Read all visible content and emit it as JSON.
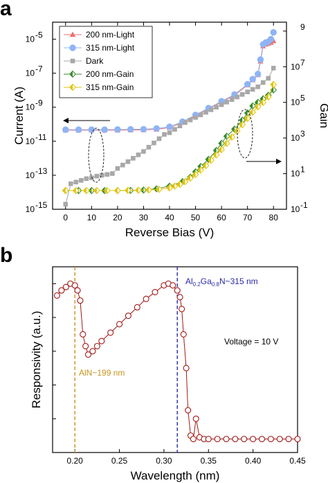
{
  "colors": {
    "light_200": "#ee6f6f",
    "light_315": "#8fb4f6",
    "dark": "#a8a8a8",
    "gain_200": "#3a8a2c",
    "gain_315": "#e0c40a",
    "resp": "#a11818",
    "aln_line": "#c8941e",
    "algan_line": "#2a2aa6",
    "axis": "#000000"
  },
  "chart_data": [
    {
      "panel": "a",
      "type": "scatter",
      "xlabel": "Reverse Bias (V)",
      "ylabel": "Current (A)",
      "y2label": "Gain",
      "xlim": [
        -5,
        85
      ],
      "ylim_log10": [
        -15,
        -4
      ],
      "y2lim_log10": [
        -1,
        9.5
      ],
      "xticks": [
        "0",
        "10",
        "20",
        "30",
        "40",
        "50",
        "60",
        "70",
        "80"
      ],
      "yticks_base": [
        "10",
        "10",
        "10",
        "10",
        "10",
        "10"
      ],
      "yticks_exp": [
        "-15",
        "-13",
        "-11",
        "-9",
        "-7",
        "-5"
      ],
      "y2ticks_base": [
        "10",
        "10",
        "10",
        "10",
        "10"
      ],
      "y2ticks_exp": [
        "-1",
        "1",
        "3",
        "5",
        "7",
        "9"
      ],
      "y2ticks_extra": [
        "10"
      ],
      "legend": [
        "200 nm-Light",
        "315 nm-Light",
        "Dark",
        "200 nm-Gain",
        "315 nm-Gain"
      ],
      "legend_position": "top-left",
      "series": [
        {
          "name": "200 nm-Light",
          "marker": "triangle",
          "axis": "left",
          "x": [
            0,
            5,
            10,
            15,
            20,
            25,
            30,
            35,
            40,
            45,
            50,
            55,
            60,
            65,
            70,
            72,
            74,
            75,
            76,
            77,
            78,
            79,
            80
          ],
          "y_log10": [
            -10.35,
            -10.35,
            -10.35,
            -10.35,
            -10.35,
            -10.34,
            -10.33,
            -10.3,
            -10.2,
            -9.9,
            -9.5,
            -9.1,
            -8.7,
            -8.3,
            -7.7,
            -7.4,
            -7.1,
            -6.3,
            -5.4,
            -5.3,
            -5.25,
            -5.2,
            -5.1
          ]
        },
        {
          "name": "315 nm-Light",
          "marker": "circle",
          "axis": "left",
          "x": [
            0,
            5,
            10,
            15,
            20,
            25,
            30,
            35,
            40,
            45,
            50,
            55,
            60,
            65,
            70,
            72,
            74,
            75,
            76,
            77,
            78,
            79,
            80
          ],
          "y_log10": [
            -10.32,
            -10.32,
            -10.32,
            -10.32,
            -10.31,
            -10.3,
            -10.29,
            -10.25,
            -10.15,
            -9.85,
            -9.45,
            -9.05,
            -8.65,
            -8.25,
            -7.65,
            -7.35,
            -7.05,
            -6.2,
            -5.3,
            -5.2,
            -5.15,
            -5.0,
            -4.6
          ]
        },
        {
          "name": "Dark",
          "marker": "square",
          "axis": "left",
          "x": [
            0,
            2,
            4,
            6,
            8,
            10,
            12,
            14,
            16,
            18,
            20,
            22,
            24,
            26,
            28,
            30,
            32,
            34,
            36,
            38,
            40,
            42,
            44,
            46,
            48,
            50,
            52,
            54,
            56,
            58,
            60,
            62,
            64,
            66,
            68,
            70,
            72,
            74,
            76,
            78,
            80
          ],
          "y_log10": [
            -14.7,
            -13.5,
            -13.4,
            -13.3,
            -13.2,
            -13.15,
            -13.05,
            -13.0,
            -12.95,
            -12.9,
            -12.6,
            -12.4,
            -12.2,
            -12.0,
            -11.8,
            -11.6,
            -11.35,
            -11.1,
            -10.85,
            -10.6,
            -10.5,
            -10.3,
            -10.1,
            -9.9,
            -9.75,
            -9.6,
            -9.45,
            -9.3,
            -9.15,
            -9.0,
            -8.85,
            -8.7,
            -8.55,
            -8.4,
            -8.25,
            -8.1,
            -7.95,
            -7.8,
            -7.55,
            -7.3,
            -6.7
          ]
        },
        {
          "name": "200 nm-Gain",
          "marker": "diamond-half",
          "axis": "right",
          "x": [
            0,
            5,
            10,
            15,
            20,
            25,
            30,
            35,
            40,
            45,
            48,
            50,
            52,
            55,
            58,
            60,
            62,
            65,
            68,
            70,
            72,
            74,
            76,
            78,
            80
          ],
          "y_log10": [
            0.05,
            0.05,
            0.05,
            0.05,
            0.05,
            0.06,
            0.08,
            0.15,
            0.3,
            0.55,
            0.8,
            1.1,
            1.4,
            1.8,
            2.3,
            2.7,
            3.1,
            3.5,
            4.0,
            4.4,
            4.8,
            5.0,
            5.2,
            5.4,
            5.7
          ]
        },
        {
          "name": "315 nm-Gain",
          "marker": "diamond-half",
          "axis": "right",
          "x": [
            0,
            4,
            8,
            12,
            16,
            20,
            24,
            28,
            32,
            36,
            40,
            42,
            44,
            46,
            48,
            50,
            52,
            54,
            56,
            58,
            60,
            62,
            64,
            66,
            68,
            70,
            72,
            74,
            76,
            78,
            80
          ],
          "y_log10": [
            0.05,
            0.05,
            0.05,
            0.05,
            0.05,
            0.05,
            0.06,
            0.07,
            0.09,
            0.12,
            0.2,
            0.3,
            0.4,
            0.55,
            0.75,
            0.95,
            1.2,
            1.45,
            1.75,
            2.05,
            2.35,
            2.7,
            3.05,
            3.4,
            3.75,
            4.1,
            4.45,
            4.75,
            5.0,
            5.3,
            6.0
          ]
        }
      ],
      "annotations": []
    },
    {
      "panel": "b",
      "type": "line",
      "xlabel": "Wavelength (nm)",
      "ylabel": "Responsivity (a.u.)",
      "xlim": [
        0.175,
        0.45
      ],
      "ylim": [
        0,
        1.1
      ],
      "xticks": [
        "0.20",
        "0.25",
        "0.30",
        "0.35",
        "0.40",
        "0.45"
      ],
      "markers": "open-circle",
      "x": [
        0.18,
        0.185,
        0.19,
        0.195,
        0.2,
        0.203,
        0.206,
        0.209,
        0.212,
        0.215,
        0.22,
        0.225,
        0.23,
        0.24,
        0.25,
        0.26,
        0.27,
        0.28,
        0.29,
        0.3,
        0.305,
        0.31,
        0.315,
        0.318,
        0.32,
        0.322,
        0.325,
        0.327,
        0.33,
        0.333,
        0.336,
        0.34,
        0.345,
        0.35,
        0.36,
        0.37,
        0.38,
        0.39,
        0.4,
        0.41,
        0.42,
        0.43,
        0.44,
        0.45
      ],
      "y": [
        0.93,
        0.96,
        0.98,
        1.0,
        0.99,
        0.96,
        0.9,
        0.7,
        0.63,
        0.58,
        0.6,
        0.63,
        0.66,
        0.71,
        0.76,
        0.81,
        0.86,
        0.91,
        0.95,
        0.99,
        1.0,
        0.99,
        0.96,
        0.92,
        0.85,
        0.7,
        0.5,
        0.25,
        0.1,
        0.08,
        0.2,
        0.09,
        0.08,
        0.08,
        0.08,
        0.08,
        0.08,
        0.08,
        0.08,
        0.08,
        0.08,
        0.08,
        0.08,
        0.08
      ],
      "vlines": [
        {
          "x": 0.2,
          "label_main": "AlN~199 nm"
        },
        {
          "x": 0.315,
          "label_parts": [
            "Al",
            "0.2",
            "Ga",
            "0.8",
            "N~315 nm"
          ]
        }
      ],
      "annotation": "Voltage = 10 V"
    }
  ],
  "panels": {
    "a_letter": "a",
    "b_letter": "b"
  }
}
